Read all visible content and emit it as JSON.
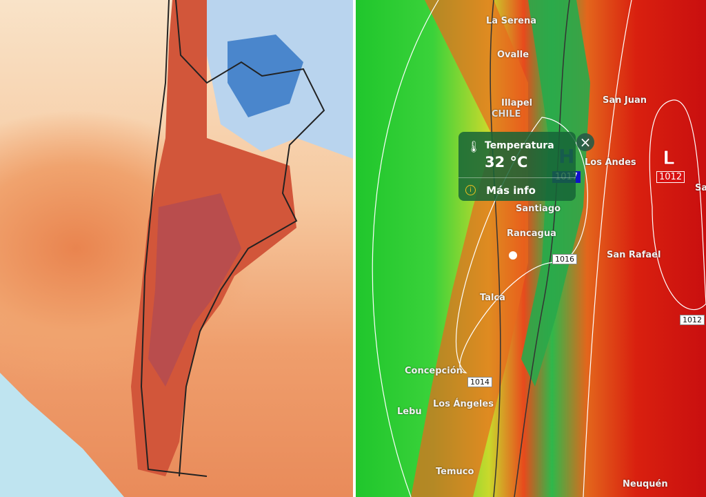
{
  "left_map": {
    "description_colors": {
      "cold": "#3a78c8",
      "warm": "#f0a36e",
      "hot": "#c83a2a"
    }
  },
  "right_map": {
    "cities": [
      "La Serena",
      "Ovalle",
      "Illapel",
      "CHILE",
      "San Juan",
      "Los Andes",
      "Santiago",
      "Rancagua",
      "San Rafael",
      "Talca",
      "Concepción",
      "Los Ángeles",
      "Lebu",
      "Temuco",
      "Neuquén",
      "Sa"
    ],
    "pressure_labels": {
      "high": "H",
      "high_value": "1017",
      "low": "L",
      "low_value": "1012",
      "isobars": [
        "1016",
        "1014",
        "1012"
      ]
    },
    "popup": {
      "title": "Temperatura",
      "value": "32 °C",
      "more_info": "Más info",
      "icon": "thermometer-icon",
      "info_icon": "info-icon",
      "close_icon": "close-icon"
    }
  }
}
